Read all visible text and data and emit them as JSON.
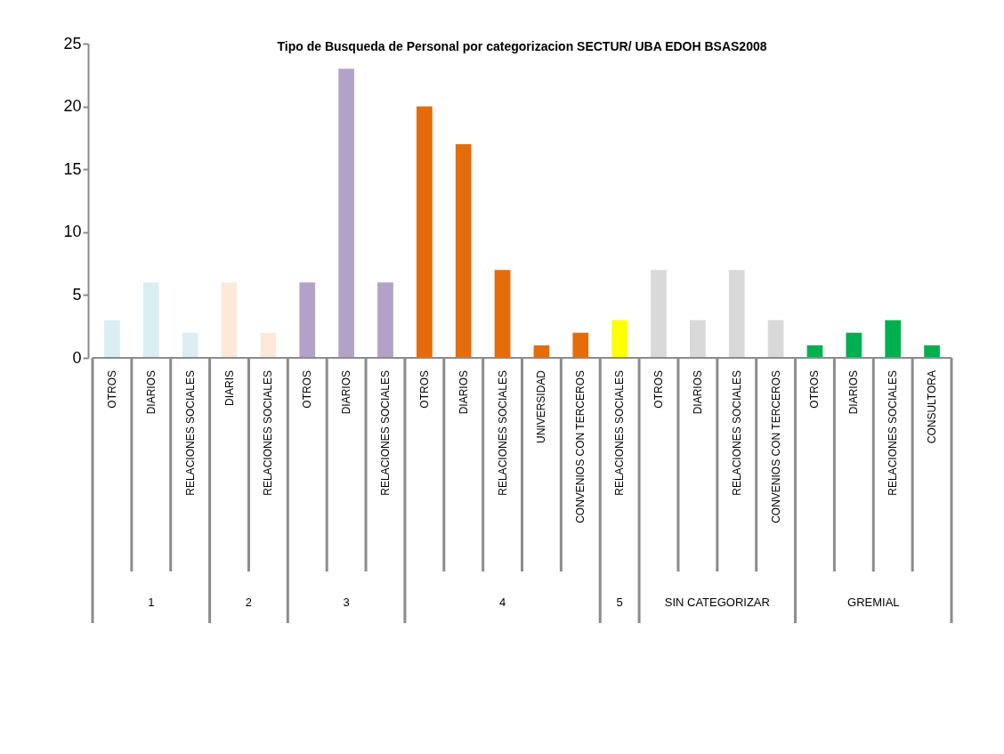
{
  "chart_data": {
    "type": "bar",
    "title": "Tipo de Busqueda de Personal por categorizacion SECTUR/ UBA EDOH BSAS2008",
    "categories": [
      "OTROS",
      "DIARIOS",
      "RELACIONES SOCIALES",
      "DIARIS",
      "RELACIONES SOCIALES",
      "OTROS",
      "DIARIOS",
      "RELACIONES SOCIALES",
      "OTROS",
      "DIARIOS",
      "RELACIONES SOCIALES",
      "UNIVERSIDAD",
      "CONVENIOS CON TERCEROS",
      "RELACIONES SOCIALES",
      "OTROS",
      "DIARIOS",
      "RELACIONES SOCIALES",
      "CONVENIOS CON TERCEROS",
      "OTROS",
      "DIARIOS",
      "RELACIONES SOCIALES",
      "CONSULTORA"
    ],
    "series": [
      {
        "color": "#daeef3",
        "values": [
          3,
          6,
          2,
          null,
          null,
          null,
          null,
          null,
          null,
          null,
          null,
          null,
          null,
          null,
          null,
          null,
          null,
          null,
          null,
          null,
          null,
          null
        ]
      },
      {
        "color": "#fde9d9",
        "values": [
          null,
          null,
          null,
          6,
          2,
          null,
          null,
          null,
          null,
          null,
          null,
          null,
          null,
          null,
          null,
          null,
          null,
          null,
          null,
          null,
          null,
          null
        ]
      },
      {
        "color": "#b3a2c7",
        "values": [
          null,
          null,
          null,
          null,
          null,
          6,
          23,
          6,
          null,
          null,
          null,
          null,
          null,
          null,
          null,
          null,
          null,
          null,
          null,
          null,
          null,
          null
        ]
      },
      {
        "color": "#e46c0a",
        "values": [
          null,
          null,
          null,
          null,
          null,
          null,
          null,
          null,
          20,
          17,
          7,
          1,
          2,
          null,
          null,
          null,
          null,
          null,
          null,
          null,
          null,
          null
        ]
      },
      {
        "color": "#ffff00",
        "values": [
          null,
          null,
          null,
          null,
          null,
          null,
          null,
          null,
          null,
          null,
          null,
          null,
          null,
          3,
          null,
          null,
          null,
          null,
          null,
          null,
          null,
          null
        ]
      },
      {
        "color": "#d9d9d9",
        "values": [
          null,
          null,
          null,
          null,
          null,
          null,
          null,
          null,
          null,
          null,
          null,
          null,
          null,
          null,
          7,
          3,
          7,
          3,
          null,
          null,
          null,
          null
        ]
      },
      {
        "color": "#00b050",
        "values": [
          null,
          null,
          null,
          null,
          null,
          null,
          null,
          null,
          null,
          null,
          null,
          null,
          null,
          null,
          null,
          null,
          null,
          null,
          1,
          2,
          3,
          1
        ]
      }
    ],
    "annotations": [
      "1",
      "2",
      "3",
      "4",
      "5",
      "SIN CATEGORIZAR",
      "GREMIAL"
    ],
    "ylim": [
      0,
      25
    ],
    "yticks": [
      0,
      5,
      10,
      15,
      20,
      25
    ],
    "grid": false,
    "legend": false
  }
}
